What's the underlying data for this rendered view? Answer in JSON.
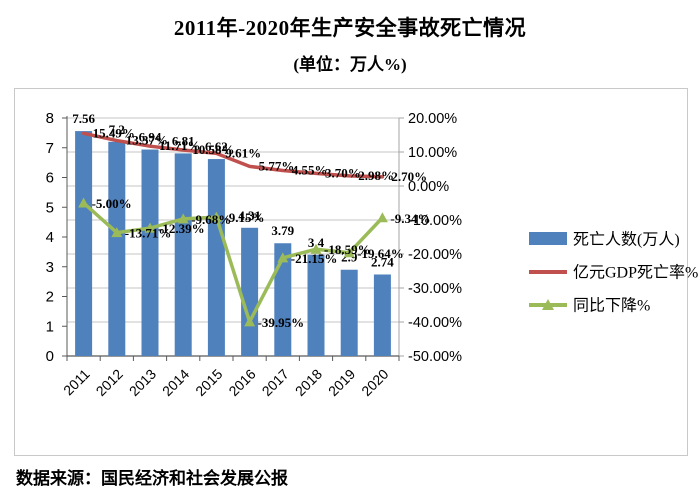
{
  "page": {
    "title": "2011年-2020年生产安全事故死亡情况",
    "subtitle": "(单位：万人%)",
    "source": "数据来源：国民经济和社会发展公报"
  },
  "chart_data": {
    "type": "combo-bar-line",
    "title": "2011年-2020年生产安全事故死亡情况",
    "unit_note": "(单位：万人%)",
    "categories": [
      "2011",
      "2012",
      "2013",
      "2014",
      "2015",
      "2016",
      "2017",
      "2018",
      "2019",
      "2020"
    ],
    "series": [
      {
        "name": "死亡人数(万人)",
        "type": "bar",
        "axis": "left",
        "color": "#4F81BD",
        "values": [
          7.56,
          7.2,
          6.94,
          6.81,
          6.62,
          4.31,
          3.79,
          3.4,
          2.9,
          2.74
        ],
        "labels": [
          "7.56",
          "7.2",
          "6.94",
          "6.81",
          "6.62",
          "4.31",
          "3.79",
          "3.4",
          "2.9",
          "2.74"
        ]
      },
      {
        "name": "亿元GDP死亡率%",
        "type": "line",
        "axis": "right",
        "color": "#C0504D",
        "values": [
          15.49,
          13.37,
          11.71,
          10.58,
          9.61,
          5.77,
          4.55,
          3.7,
          2.98,
          2.7
        ],
        "labels": [
          "15.49%",
          "13.37%",
          "11.71%",
          "10.58%",
          "9.61%",
          "5.77%",
          "4.55%",
          "3.70%",
          "2.98%",
          "2.70%"
        ]
      },
      {
        "name": "同比下降%",
        "type": "line-triangle-marker",
        "axis": "right",
        "color": "#9BBB59",
        "values": [
          -5.0,
          -13.71,
          -12.39,
          -9.68,
          -9.15,
          -39.95,
          -21.15,
          -18.59,
          -19.64,
          -9.34
        ],
        "labels": [
          "-5.00%",
          "-13.71%",
          "-12.39%",
          "-9.68%",
          "-9.15%",
          "-39.95%",
          "-21.15%",
          "-18.59%",
          "-19.64%",
          "-9.34%"
        ]
      }
    ],
    "left_axis": {
      "min": 0,
      "max": 8,
      "step": 1,
      "tick_labels": [
        "0",
        "1",
        "2",
        "3",
        "4",
        "5",
        "6",
        "7",
        "8"
      ]
    },
    "right_axis": {
      "min": -50,
      "max": 20,
      "step": 10,
      "tick_labels": [
        "20.00%",
        "10.00%",
        "0.00%",
        "-10.00%",
        "-20.00%",
        "-30.00%",
        "-40.00%",
        "-50.00%"
      ]
    },
    "legend": [
      "死亡人数(万人)",
      "亿元GDP死亡率%",
      "同比下降%"
    ],
    "legend_position": "right",
    "grid": true,
    "source": "数据来源：国民经济和社会发展公报"
  }
}
